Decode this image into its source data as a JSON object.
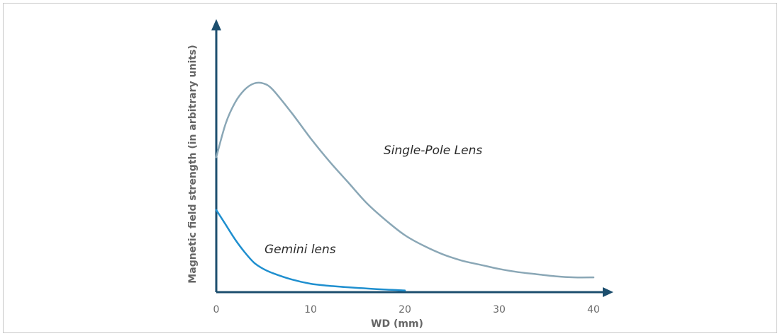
{
  "chart_data": {
    "type": "line",
    "xlabel": "WD (mm)",
    "ylabel": "Magnetic field strength (in arbitrary units)",
    "x_ticks": [
      "0",
      "10",
      "20",
      "30",
      "40"
    ],
    "xlim": [
      0,
      40
    ],
    "ylim": [
      0,
      100
    ],
    "grid": false,
    "legend": "none",
    "axis_color": "#1c4e6e",
    "series": [
      {
        "name": "Single-Pole Lens",
        "color": "#8aa7b6",
        "x": [
          0,
          1,
          2,
          3,
          4,
          5,
          6,
          8,
          10,
          12,
          14,
          16,
          18,
          20,
          22,
          24,
          26,
          28,
          30,
          32,
          34,
          36,
          38,
          40
        ],
        "y": [
          64,
          80,
          90,
          96,
          99,
          99,
          96,
          85,
          73,
          62,
          52,
          42,
          34,
          27,
          22,
          18,
          15,
          13,
          11,
          9.5,
          8.5,
          7.5,
          7,
          7
        ]
      },
      {
        "name": "Gemini lens",
        "color": "#1f8fcf",
        "x": [
          0,
          1,
          2,
          3,
          4,
          5,
          6,
          8,
          10,
          12,
          14,
          16,
          18,
          20
        ],
        "y": [
          39,
          32,
          25,
          19,
          14,
          11,
          9,
          6,
          4,
          3,
          2.3,
          1.7,
          1.2,
          0.8
        ]
      }
    ]
  }
}
